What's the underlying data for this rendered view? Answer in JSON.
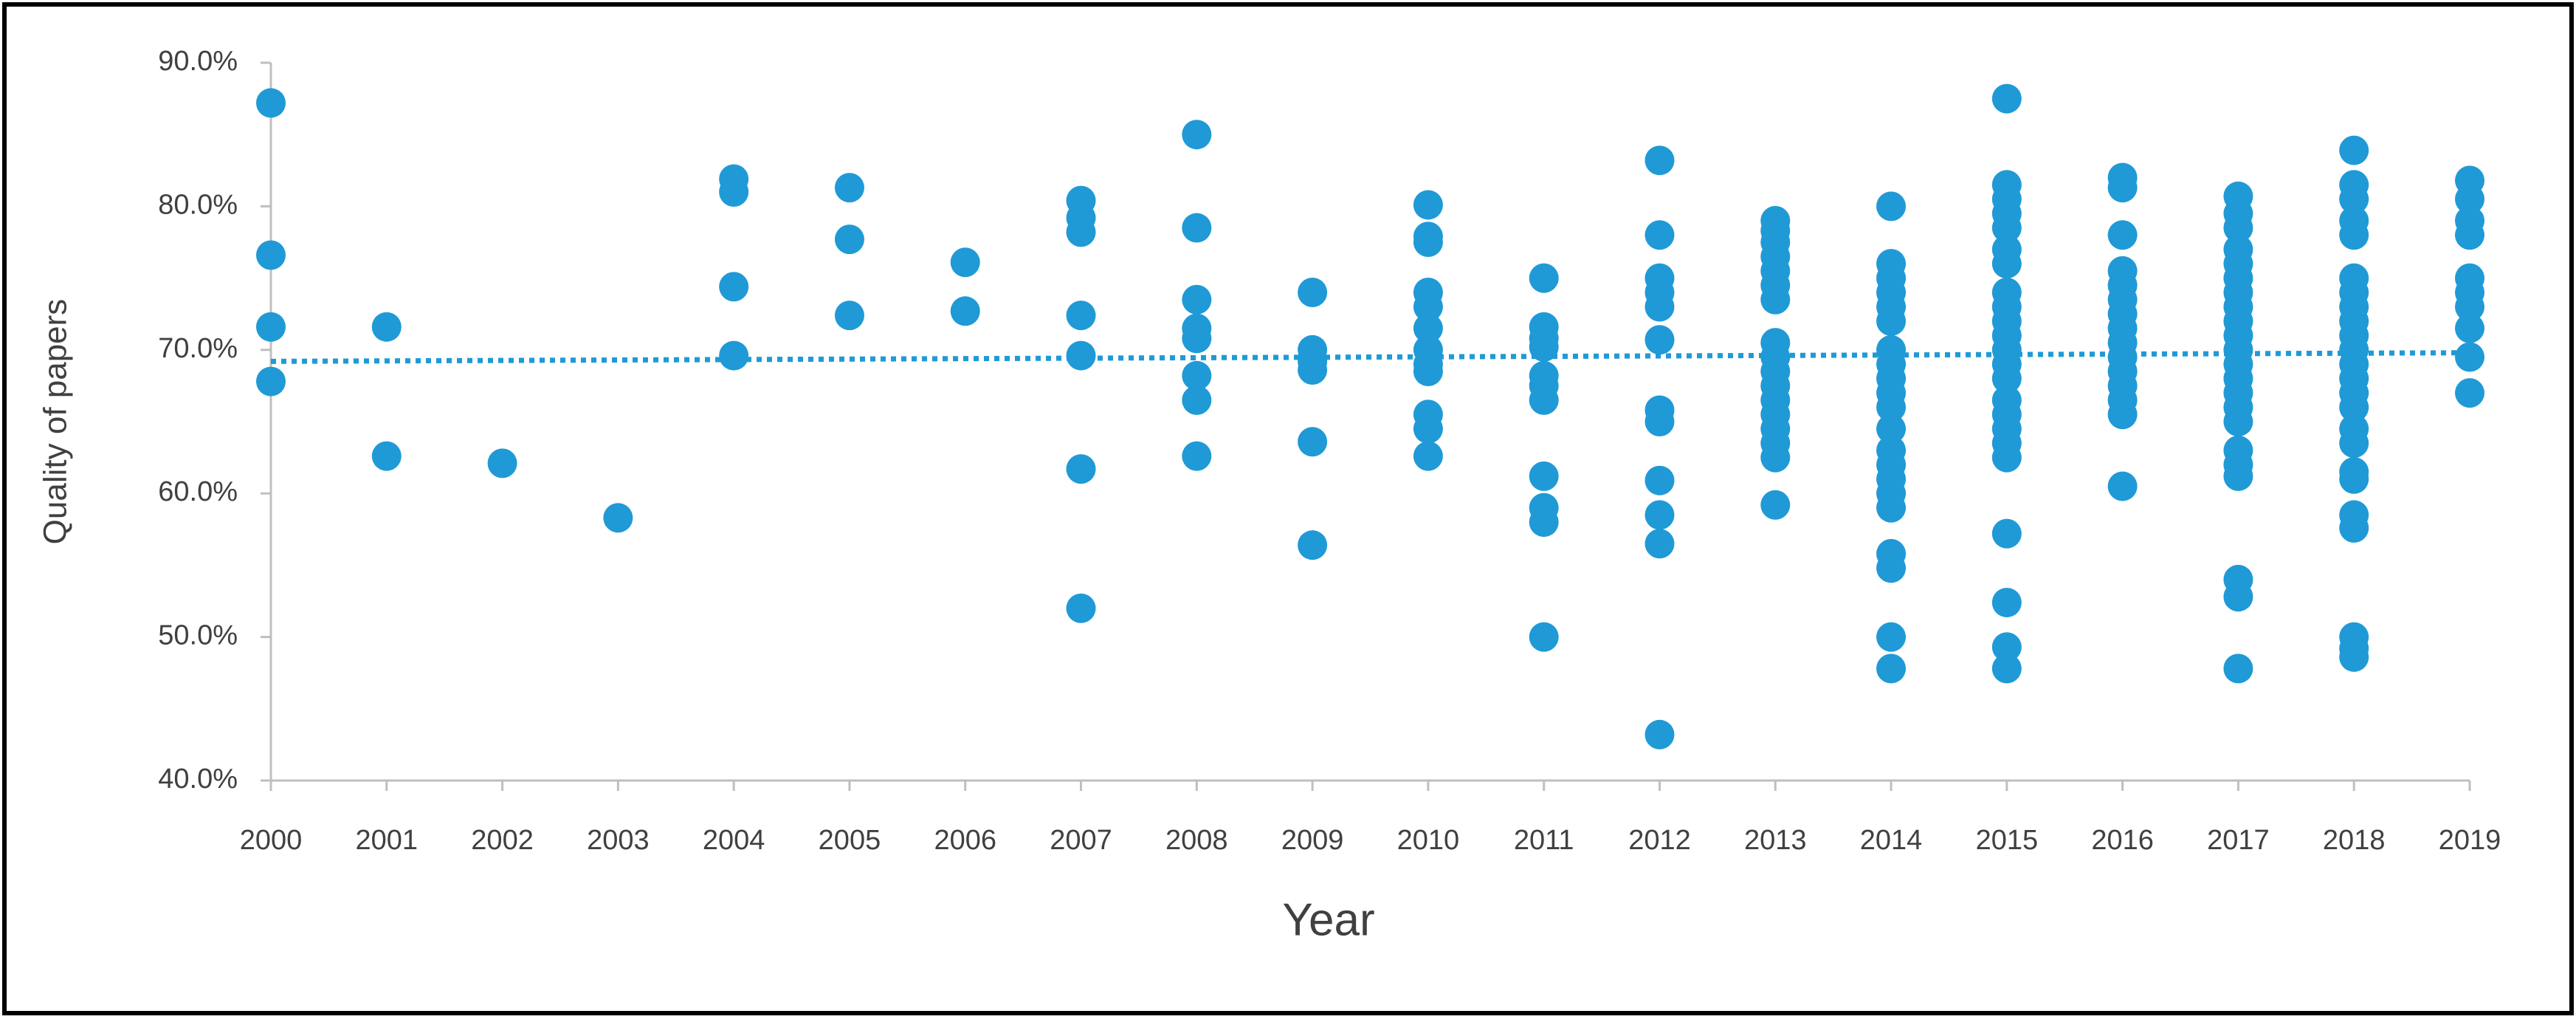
{
  "chart_data": {
    "type": "scatter",
    "xlabel": "Year",
    "ylabel": "Quality of papers",
    "color": "#1f9ad6",
    "x": [
      2000,
      2000,
      2000,
      2000,
      2001,
      2001,
      2002,
      2003,
      2004,
      2004,
      2004,
      2004,
      2005,
      2005,
      2005,
      2006,
      2006,
      2007,
      2007,
      2007,
      2007,
      2007,
      2007,
      2007,
      2008,
      2008,
      2008,
      2008,
      2008,
      2008,
      2008,
      2008,
      2009,
      2009,
      2009,
      2009,
      2009,
      2009,
      2010,
      2010,
      2010,
      2010,
      2010,
      2010,
      2010,
      2010,
      2010,
      2010,
      2010,
      2010,
      2011,
      2011,
      2011,
      2011,
      2011,
      2011,
      2011,
      2011,
      2011,
      2011,
      2011,
      2012,
      2012,
      2012,
      2012,
      2012,
      2012,
      2012,
      2012,
      2012,
      2012,
      2012,
      2012,
      2013,
      2013,
      2013,
      2013,
      2013,
      2013,
      2013,
      2013,
      2013,
      2013,
      2013,
      2013,
      2013,
      2013,
      2013,
      2013,
      2013,
      2014,
      2014,
      2014,
      2014,
      2014,
      2014,
      2014,
      2014,
      2014,
      2014,
      2014,
      2014,
      2014,
      2014,
      2014,
      2014,
      2014,
      2014,
      2014,
      2014,
      2014,
      2015,
      2015,
      2015,
      2015,
      2015,
      2015,
      2015,
      2015,
      2015,
      2015,
      2015,
      2015,
      2015,
      2015,
      2015,
      2015,
      2015,
      2015,
      2015,
      2015,
      2015,
      2015,
      2015,
      2016,
      2016,
      2016,
      2016,
      2016,
      2016,
      2016,
      2016,
      2016,
      2016,
      2016,
      2016,
      2016,
      2016,
      2016,
      2017,
      2017,
      2017,
      2017,
      2017,
      2017,
      2017,
      2017,
      2017,
      2017,
      2017,
      2017,
      2017,
      2017,
      2017,
      2017,
      2017,
      2017,
      2017,
      2017,
      2017,
      2017,
      2018,
      2018,
      2018,
      2018,
      2018,
      2018,
      2018,
      2018,
      2018,
      2018,
      2018,
      2018,
      2018,
      2018,
      2018,
      2018,
      2018,
      2018,
      2018,
      2018,
      2018,
      2018,
      2018,
      2018,
      2019,
      2019,
      2019,
      2019,
      2019,
      2019,
      2019,
      2019,
      2019,
      2019
    ],
    "values": [
      87.2,
      76.6,
      71.6,
      67.8,
      71.6,
      62.6,
      62.1,
      58.3,
      81.9,
      81.0,
      74.4,
      69.6,
      81.3,
      77.7,
      72.4,
      76.1,
      72.7,
      80.4,
      79.2,
      78.2,
      72.4,
      69.6,
      61.7,
      52.0,
      85.0,
      78.5,
      73.5,
      71.5,
      70.8,
      68.2,
      66.5,
      62.6,
      74.0,
      70.0,
      69.2,
      68.6,
      63.6,
      56.4,
      80.1,
      77.9,
      77.5,
      74.0,
      73.0,
      71.5,
      70.0,
      69.0,
      68.5,
      65.5,
      64.5,
      62.6,
      75.0,
      71.6,
      70.8,
      70.2,
      68.2,
      67.5,
      66.5,
      61.2,
      59.0,
      58.0,
      50.0,
      83.2,
      78.0,
      75.0,
      74.0,
      73.0,
      70.7,
      65.8,
      65.0,
      60.9,
      58.5,
      56.5,
      43.2,
      79.0,
      78.3,
      77.5,
      76.5,
      75.5,
      74.5,
      73.5,
      70.5,
      69.5,
      68.5,
      67.5,
      66.5,
      65.5,
      64.5,
      63.5,
      62.5,
      59.2,
      80.0,
      76.0,
      75.0,
      74.0,
      73.0,
      72.0,
      70.0,
      69.0,
      68.0,
      67.0,
      66.0,
      64.5,
      63.0,
      62.0,
      61.0,
      60.0,
      59.0,
      55.8,
      54.8,
      50.0,
      47.8,
      87.5,
      81.5,
      80.5,
      79.5,
      78.5,
      77.0,
      76.0,
      74.0,
      73.0,
      72.0,
      71.0,
      70.0,
      69.0,
      68.0,
      66.5,
      65.5,
      64.5,
      63.5,
      62.5,
      57.2,
      52.4,
      49.3,
      47.8,
      82.0,
      81.3,
      78.0,
      75.5,
      74.5,
      73.5,
      72.5,
      71.5,
      70.5,
      69.5,
      68.5,
      67.5,
      66.5,
      65.5,
      60.5,
      80.7,
      79.5,
      78.5,
      77.0,
      76.0,
      75.0,
      74.0,
      73.0,
      72.0,
      71.0,
      70.0,
      69.0,
      68.0,
      67.0,
      66.0,
      65.0,
      63.0,
      62.0,
      61.2,
      54.0,
      52.8,
      47.8,
      83.9,
      81.5,
      80.5,
      79.0,
      78.0,
      75.0,
      74.0,
      73.0,
      72.0,
      71.0,
      70.0,
      69.0,
      68.0,
      67.0,
      66.0,
      64.5,
      63.5,
      61.5,
      61.0,
      58.5,
      57.6,
      50.0,
      49.2,
      48.6,
      81.8,
      80.5,
      79.0,
      78.0,
      75.0,
      74.0,
      73.0,
      71.5,
      69.5,
      67.0
    ],
    "trendline": {
      "x": [
        2000,
        2019
      ],
      "values": [
        69.2,
        69.8
      ]
    },
    "xlim": [
      2000,
      2019
    ],
    "xticks": [
      2000,
      2001,
      2002,
      2003,
      2004,
      2005,
      2006,
      2007,
      2008,
      2009,
      2010,
      2011,
      2012,
      2013,
      2014,
      2015,
      2016,
      2017,
      2018,
      2019
    ],
    "ylim": [
      40,
      90
    ],
    "yticks": [
      {
        "value": 40,
        "label": "40.0%"
      },
      {
        "value": 50,
        "label": "50.0%"
      },
      {
        "value": 60,
        "label": "60.0%"
      },
      {
        "value": 70,
        "label": "70.0%"
      },
      {
        "value": 80,
        "label": "80.0%"
      },
      {
        "value": 90,
        "label": "90.0%"
      }
    ],
    "grid": false
  }
}
